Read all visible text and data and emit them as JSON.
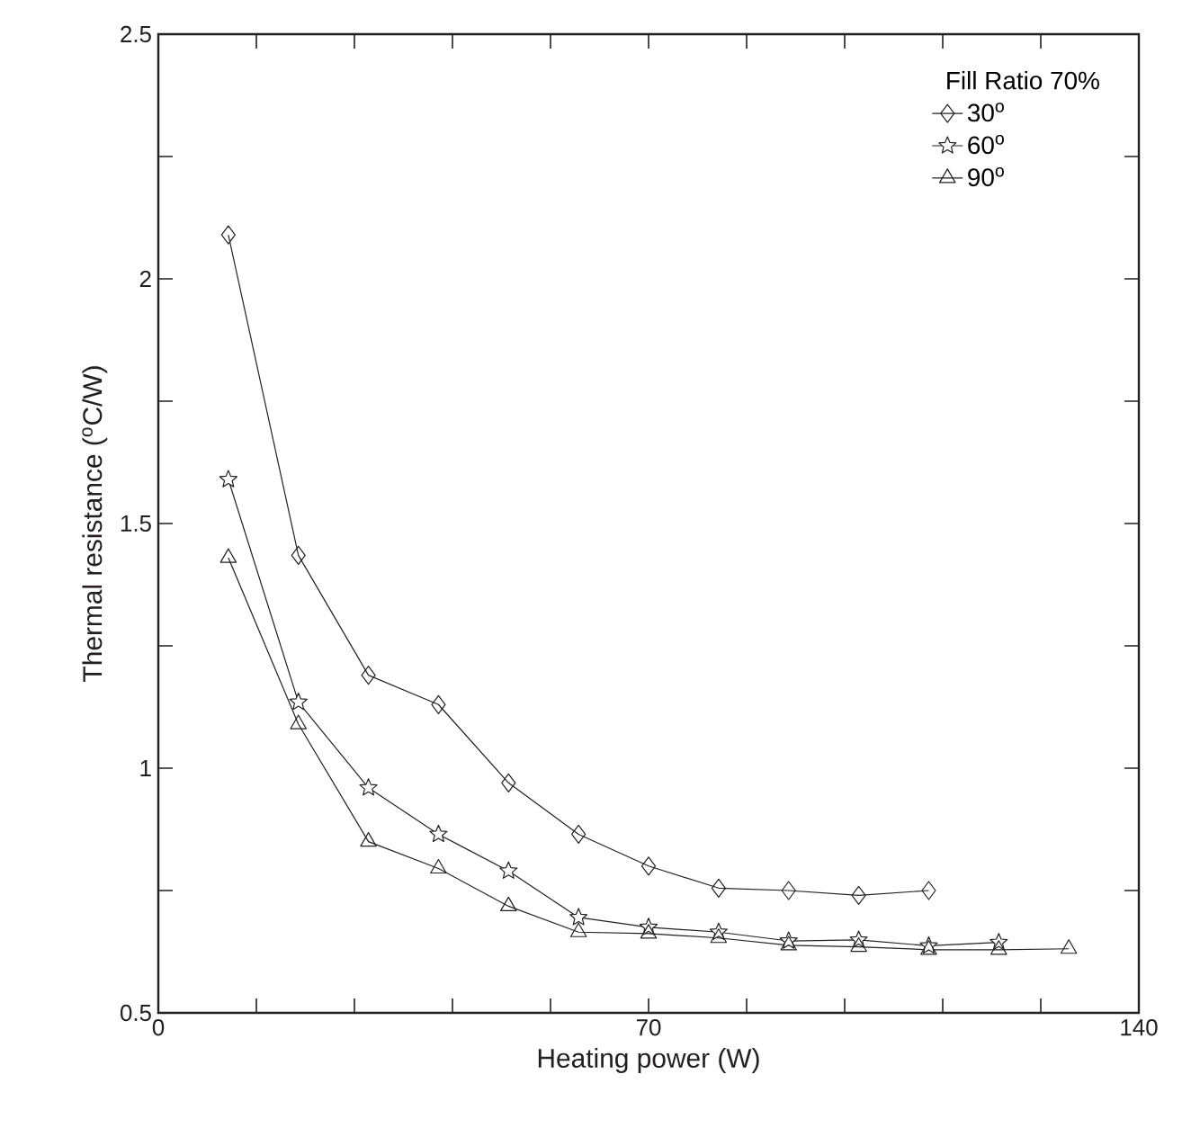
{
  "chart_data": {
    "type": "line",
    "xlabel": "Heating power (W)",
    "ylabel": "Thermal resistance ($^{o}$C/W)",
    "legend_title": "Fill Ratio 70%",
    "legend": "top right",
    "xlim": [
      0,
      140
    ],
    "xticks": [
      0,
      {
        "value": 14,
        "label": null
      },
      {
        "value": 28,
        "label": null
      },
      {
        "value": 42,
        "label": null
      },
      {
        "value": 56,
        "label": null
      },
      70,
      {
        "value": 84,
        "label": null
      },
      {
        "value": 98,
        "label": null
      },
      {
        "value": 112,
        "label": null
      },
      {
        "value": 126,
        "label": null
      },
      140
    ],
    "ylim": [
      0.5,
      2.5
    ],
    "yticks": [
      0.5,
      {
        "value": 0.75,
        "label": null
      },
      1,
      {
        "value": 1.25,
        "label": null
      },
      1.5,
      {
        "value": 1.75,
        "label": null
      },
      2,
      {
        "value": 2.25,
        "label": null
      },
      2.5
    ],
    "series": [
      {
        "name": "30$^{o}$",
        "color": "#231f20",
        "marker": "diamond",
        "x": [
          10,
          20,
          30,
          40,
          50,
          60,
          70,
          80,
          90,
          100,
          110
        ],
        "values": [
          2.09,
          1.435,
          1.19,
          1.13,
          0.97,
          0.865,
          0.8,
          0.755,
          0.75,
          0.74,
          0.75
        ]
      },
      {
        "name": "60$^{o}$",
        "color": "#231f20",
        "marker": "star",
        "x": [
          10,
          20,
          30,
          40,
          50,
          60,
          70,
          80,
          90,
          100,
          110,
          120
        ],
        "values": [
          1.59,
          1.135,
          0.96,
          0.865,
          0.79,
          0.695,
          0.675,
          0.665,
          0.647,
          0.649,
          0.637,
          0.644
        ]
      },
      {
        "name": "90$^{o}$",
        "color": "#231f20",
        "marker": "triangle",
        "x": [
          10,
          20,
          30,
          40,
          50,
          60,
          70,
          80,
          90,
          100,
          110,
          120,
          130
        ],
        "values": [
          1.43,
          1.09,
          0.85,
          0.795,
          0.718,
          0.665,
          0.662,
          0.653,
          0.638,
          0.635,
          0.629,
          0.629,
          0.631
        ]
      }
    ]
  }
}
